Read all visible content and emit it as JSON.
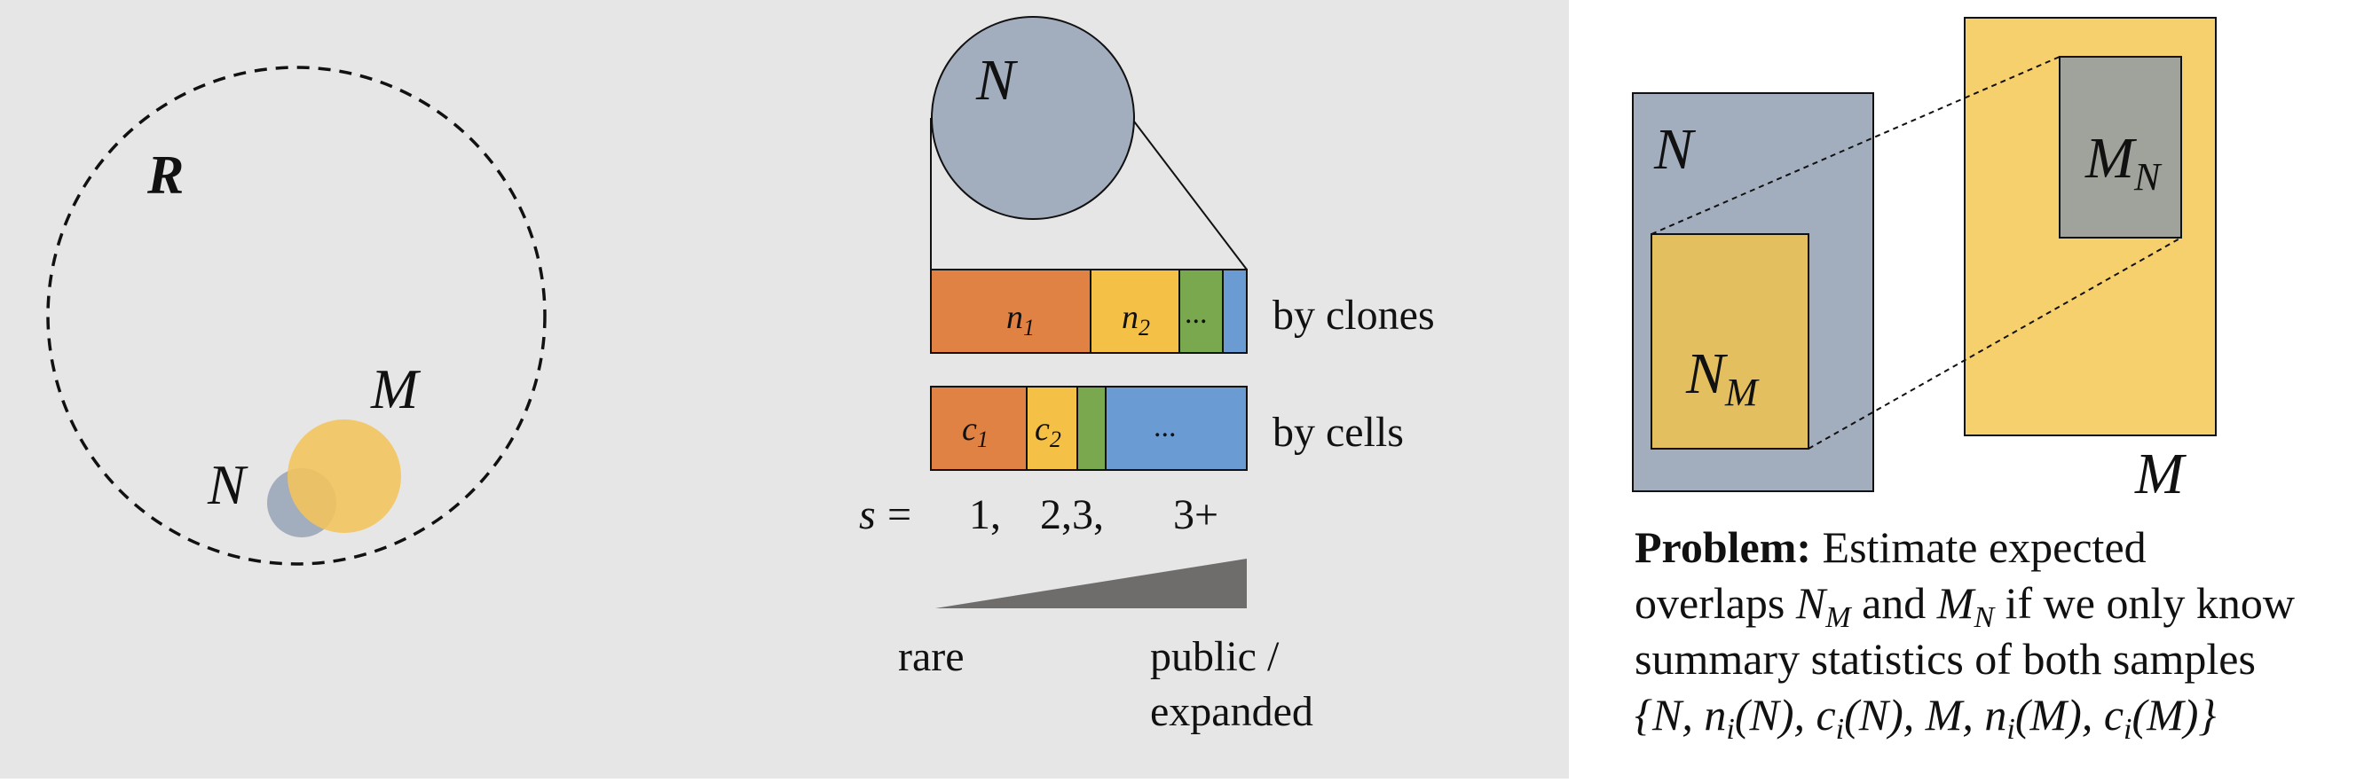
{
  "colors": {
    "panel_bg": "#e6e6e6",
    "white_bg": "#ffffff",
    "gray_blue": "#a2adbe",
    "yellow": "#f4c45b",
    "yellow_light": "#f7d06e",
    "yellow_inner": "#e3bf60",
    "orange": "#e08244",
    "green": "#79a84f",
    "blue": "#6a9bd3",
    "gray": "#a0a39b",
    "wedge": "#6f6c6c"
  },
  "panel1": {
    "universe_label": "R",
    "set_n_label": "N",
    "set_m_label": "M"
  },
  "panel2": {
    "circle_label": "N",
    "clones_row": {
      "label": "by clones",
      "segments": [
        {
          "name": "n1",
          "base": "n",
          "sub": "1",
          "color": "#e08244"
        },
        {
          "name": "n2",
          "base": "n",
          "sub": "2",
          "color": "#f4c045"
        },
        {
          "name": "dots",
          "text": "...",
          "color": "#79a84f"
        },
        {
          "name": "rest",
          "text": "",
          "color": "#6a9bd3"
        }
      ]
    },
    "cells_row": {
      "label": "by cells",
      "segments": [
        {
          "name": "c1",
          "base": "c",
          "sub": "1",
          "color": "#e08244"
        },
        {
          "name": "c2",
          "base": "c",
          "sub": "2",
          "color": "#f4c045"
        },
        {
          "name": "mid",
          "text": "",
          "color": "#79a84f"
        },
        {
          "name": "dots",
          "text": "...",
          "color": "#6a9bd3"
        }
      ]
    },
    "s_label": "s",
    "s_equals": "=",
    "s_values": [
      "1,",
      "2,3,",
      "3+"
    ],
    "scale_left": "rare",
    "scale_right_line1": "public /",
    "scale_right_line2": "expanded"
  },
  "panel3": {
    "n_label": "N",
    "m_label": "M",
    "nm_base": "N",
    "nm_sub": "M",
    "mn_base": "M",
    "mn_sub": "N",
    "problem": {
      "bold": "Problem:",
      "line1": " Estimate expected",
      "line2_a": "overlaps ",
      "line2_b": " and ",
      "line2_c": " if we only know",
      "line3": "summary statistics of both samples",
      "line4_open": "{N, n",
      "sub_i": "i",
      "line4_p1": "(N), c",
      "line4_p2": "(N), M, n",
      "line4_p3": "(M), c",
      "line4_p4": "(M)}"
    }
  }
}
